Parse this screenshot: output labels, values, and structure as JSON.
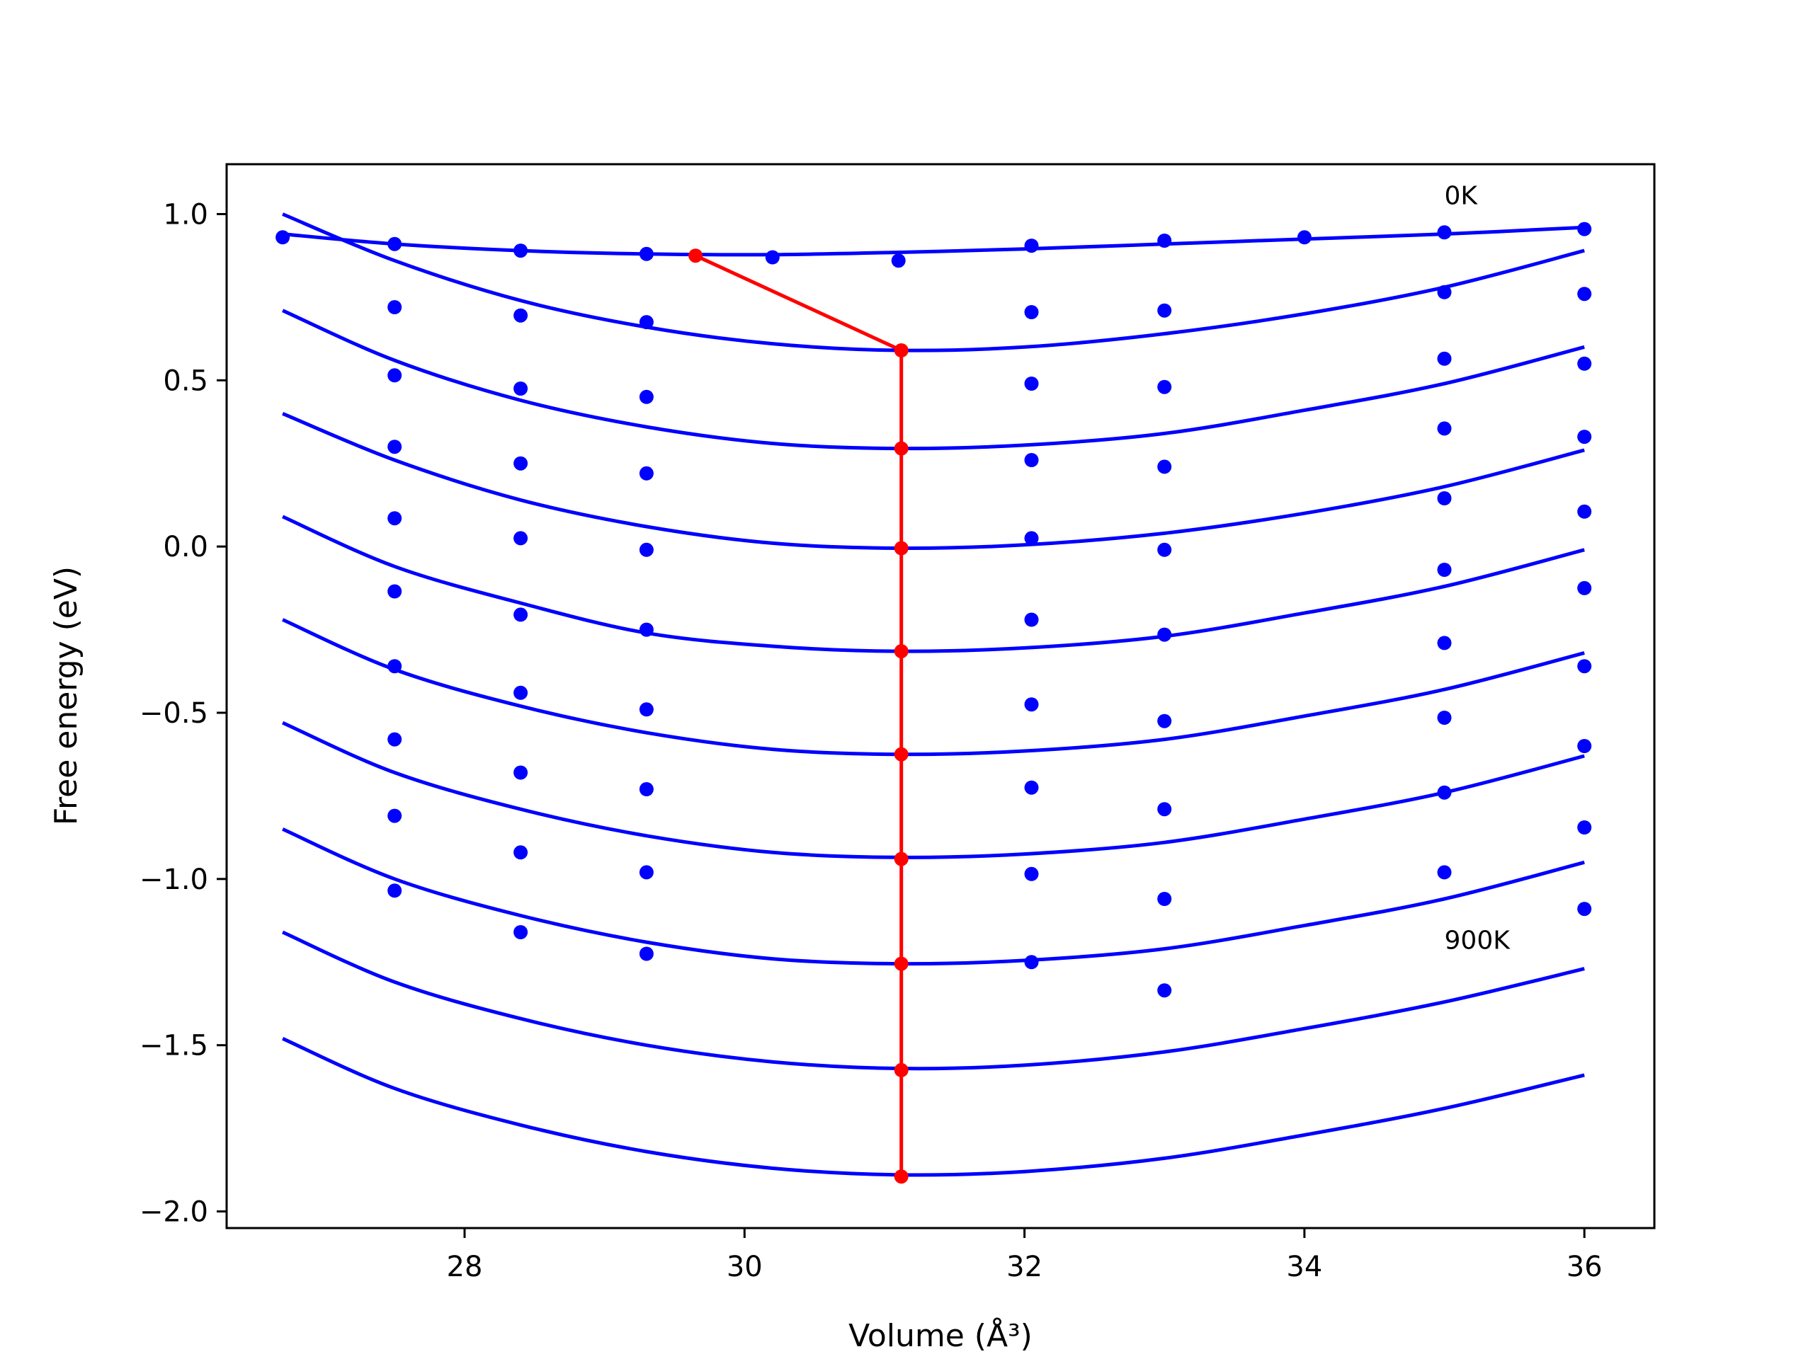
{
  "chart_data": {
    "type": "line",
    "title": "",
    "xlabel": "Volume (Å³)",
    "ylabel": "Free energy (eV)",
    "xlim": [
      26.3,
      36.5
    ],
    "ylim": [
      -2.05,
      1.15
    ],
    "xticks": [
      28,
      30,
      32,
      34,
      36
    ],
    "xtick_labels": [
      "28",
      "30",
      "32",
      "34",
      "36"
    ],
    "yticks": [
      1.0,
      0.5,
      0.0,
      -0.5,
      -1.0,
      -1.5,
      -2.0
    ],
    "ytick_labels": [
      "1.0",
      "0.5",
      "0.0",
      "−0.5",
      "−1.0",
      "−1.5",
      "−2.0"
    ],
    "grid": false,
    "colors": {
      "fit": "#0000ff",
      "data": "#0000ff",
      "minimum": "#ff0000"
    },
    "fit_curves": [
      {
        "x": [
          26.7,
          27.5,
          28.4,
          29.3,
          30.2,
          31.1,
          32.0,
          33.0,
          34.0,
          35.0,
          36.0
        ],
        "y": [
          0.94,
          0.91,
          0.89,
          0.88,
          0.878,
          0.885,
          0.895,
          0.91,
          0.925,
          0.94,
          0.96
        ]
      },
      {
        "x": [
          26.7,
          27.5,
          28.4,
          29.3,
          30.2,
          31.1,
          32.0,
          33.0,
          34.0,
          35.0,
          36.0
        ],
        "y": [
          1.0,
          0.86,
          0.74,
          0.66,
          0.61,
          0.59,
          0.6,
          0.64,
          0.7,
          0.78,
          0.89
        ]
      },
      {
        "x": [
          26.7,
          27.5,
          28.4,
          29.3,
          30.2,
          31.1,
          32.0,
          33.0,
          34.0,
          35.0,
          36.0
        ],
        "y": [
          0.71,
          0.56,
          0.44,
          0.36,
          0.31,
          0.295,
          0.305,
          0.34,
          0.41,
          0.49,
          0.6
        ]
      },
      {
        "x": [
          26.7,
          27.5,
          28.4,
          29.3,
          30.2,
          31.1,
          32.0,
          33.0,
          34.0,
          35.0,
          36.0
        ],
        "y": [
          0.4,
          0.26,
          0.14,
          0.06,
          0.01,
          -0.005,
          0.005,
          0.04,
          0.1,
          0.18,
          0.29
        ]
      },
      {
        "x": [
          26.7,
          27.5,
          28.4,
          29.3,
          30.2,
          31.1,
          32.0,
          33.0,
          34.0,
          35.0,
          36.0
        ],
        "y": [
          0.09,
          -0.06,
          -0.17,
          -0.26,
          -0.3,
          -0.315,
          -0.305,
          -0.27,
          -0.2,
          -0.12,
          -0.01
        ]
      },
      {
        "x": [
          26.7,
          27.5,
          28.4,
          29.3,
          30.2,
          31.1,
          32.0,
          33.0,
          34.0,
          35.0,
          36.0
        ],
        "y": [
          -0.22,
          -0.37,
          -0.48,
          -0.56,
          -0.61,
          -0.625,
          -0.615,
          -0.58,
          -0.51,
          -0.43,
          -0.32
        ]
      },
      {
        "x": [
          26.7,
          27.5,
          28.4,
          29.3,
          30.2,
          31.1,
          32.0,
          33.0,
          34.0,
          35.0,
          36.0
        ],
        "y": [
          -0.53,
          -0.68,
          -0.79,
          -0.87,
          -0.92,
          -0.935,
          -0.925,
          -0.89,
          -0.82,
          -0.74,
          -0.63
        ]
      },
      {
        "x": [
          26.7,
          27.5,
          28.4,
          29.3,
          30.2,
          31.1,
          32.0,
          33.0,
          34.0,
          35.0,
          36.0
        ],
        "y": [
          -0.85,
          -1.0,
          -1.11,
          -1.19,
          -1.24,
          -1.255,
          -1.245,
          -1.21,
          -1.14,
          -1.06,
          -0.95
        ]
      },
      {
        "x": [
          26.7,
          27.5,
          28.4,
          29.3,
          30.2,
          31.1,
          32.0,
          33.0,
          34.0,
          35.0,
          36.0
        ],
        "y": [
          -1.16,
          -1.31,
          -1.42,
          -1.5,
          -1.55,
          -1.57,
          -1.56,
          -1.52,
          -1.45,
          -1.37,
          -1.27
        ]
      },
      {
        "x": [
          26.7,
          27.5,
          28.4,
          29.3,
          30.2,
          31.1,
          32.0,
          33.0,
          34.0,
          35.0,
          36.0
        ],
        "y": [
          -1.48,
          -1.63,
          -1.74,
          -1.82,
          -1.87,
          -1.89,
          -1.88,
          -1.84,
          -1.77,
          -1.69,
          -1.59
        ]
      }
    ],
    "data_points": [
      {
        "x": 26.7,
        "y": 0.93
      },
      {
        "x": 27.5,
        "y": 0.91
      },
      {
        "x": 28.4,
        "y": 0.89
      },
      {
        "x": 29.3,
        "y": 0.88
      },
      {
        "x": 30.2,
        "y": 0.87
      },
      {
        "x": 31.1,
        "y": 0.86
      },
      {
        "x": 32.05,
        "y": 0.905
      },
      {
        "x": 33.0,
        "y": 0.92
      },
      {
        "x": 34.0,
        "y": 0.93
      },
      {
        "x": 35.0,
        "y": 0.945
      },
      {
        "x": 36.0,
        "y": 0.955
      },
      {
        "x": 27.5,
        "y": 0.72
      },
      {
        "x": 28.4,
        "y": 0.695
      },
      {
        "x": 29.3,
        "y": 0.675
      },
      {
        "x": 32.05,
        "y": 0.705
      },
      {
        "x": 33.0,
        "y": 0.71
      },
      {
        "x": 35.0,
        "y": 0.765
      },
      {
        "x": 36.0,
        "y": 0.76
      },
      {
        "x": 27.5,
        "y": 0.515
      },
      {
        "x": 28.4,
        "y": 0.475
      },
      {
        "x": 29.3,
        "y": 0.45
      },
      {
        "x": 32.05,
        "y": 0.49
      },
      {
        "x": 33.0,
        "y": 0.48
      },
      {
        "x": 35.0,
        "y": 0.565
      },
      {
        "x": 36.0,
        "y": 0.55
      },
      {
        "x": 27.5,
        "y": 0.3
      },
      {
        "x": 28.4,
        "y": 0.25
      },
      {
        "x": 29.3,
        "y": 0.22
      },
      {
        "x": 32.05,
        "y": 0.26
      },
      {
        "x": 33.0,
        "y": 0.24
      },
      {
        "x": 35.0,
        "y": 0.355
      },
      {
        "x": 36.0,
        "y": 0.33
      },
      {
        "x": 27.5,
        "y": 0.085
      },
      {
        "x": 28.4,
        "y": 0.025
      },
      {
        "x": 29.3,
        "y": -0.01
      },
      {
        "x": 32.05,
        "y": 0.025
      },
      {
        "x": 33.0,
        "y": -0.01
      },
      {
        "x": 35.0,
        "y": 0.145
      },
      {
        "x": 36.0,
        "y": 0.105
      },
      {
        "x": 27.5,
        "y": -0.135
      },
      {
        "x": 28.4,
        "y": -0.205
      },
      {
        "x": 29.3,
        "y": -0.25
      },
      {
        "x": 32.05,
        "y": -0.22
      },
      {
        "x": 33.0,
        "y": -0.265
      },
      {
        "x": 35.0,
        "y": -0.07
      },
      {
        "x": 36.0,
        "y": -0.125
      },
      {
        "x": 27.5,
        "y": -0.36
      },
      {
        "x": 28.4,
        "y": -0.44
      },
      {
        "x": 29.3,
        "y": -0.49
      },
      {
        "x": 32.05,
        "y": -0.475
      },
      {
        "x": 33.0,
        "y": -0.525
      },
      {
        "x": 35.0,
        "y": -0.29
      },
      {
        "x": 36.0,
        "y": -0.36
      },
      {
        "x": 27.5,
        "y": -0.58
      },
      {
        "x": 28.4,
        "y": -0.68
      },
      {
        "x": 29.3,
        "y": -0.73
      },
      {
        "x": 32.05,
        "y": -0.725
      },
      {
        "x": 33.0,
        "y": -0.79
      },
      {
        "x": 35.0,
        "y": -0.515
      },
      {
        "x": 36.0,
        "y": -0.6
      },
      {
        "x": 27.5,
        "y": -0.81
      },
      {
        "x": 28.4,
        "y": -0.92
      },
      {
        "x": 29.3,
        "y": -0.98
      },
      {
        "x": 32.05,
        "y": -0.985
      },
      {
        "x": 33.0,
        "y": -1.06
      },
      {
        "x": 35.0,
        "y": -0.74
      },
      {
        "x": 36.0,
        "y": -0.845
      },
      {
        "x": 27.5,
        "y": -1.035
      },
      {
        "x": 28.4,
        "y": -1.16
      },
      {
        "x": 29.3,
        "y": -1.225
      },
      {
        "x": 32.05,
        "y": -1.25
      },
      {
        "x": 33.0,
        "y": -1.335
      },
      {
        "x": 35.0,
        "y": -0.98
      },
      {
        "x": 36.0,
        "y": -1.09
      }
    ],
    "minimum_path": {
      "x": [
        29.65,
        31.12,
        31.12,
        31.12,
        31.12,
        31.12,
        31.12,
        31.12,
        31.12,
        31.12
      ],
      "y": [
        0.875,
        0.59,
        0.295,
        -0.005,
        -0.315,
        -0.625,
        -0.94,
        -1.255,
        -1.575,
        -1.895
      ]
    },
    "annotations": [
      {
        "text": "0K",
        "x": 35.0,
        "y": 1.03
      },
      {
        "text": "900K",
        "x": 35.0,
        "y": -1.21
      }
    ]
  }
}
